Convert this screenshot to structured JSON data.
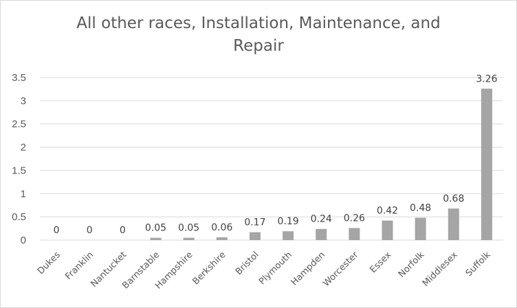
{
  "chart_data": {
    "type": "bar",
    "title_lines": [
      "All other races, Installation, Maintenance, and",
      "Repair"
    ],
    "categories": [
      "Dukes",
      "Franklin",
      "Nantucket",
      "Barnstable",
      "Hampshire",
      "Berkshire",
      "Bristol",
      "Plymouth",
      "Hampden",
      "Worcester",
      "Essex",
      "Norfolk",
      "Middlesex",
      "Suffolk"
    ],
    "values": [
      0,
      0,
      0,
      0.05,
      0.05,
      0.06,
      0.17,
      0.19,
      0.24,
      0.26,
      0.42,
      0.48,
      0.68,
      3.26
    ],
    "value_labels": [
      "0",
      "0",
      "0",
      "0.05",
      "0.05",
      "0.06",
      "0.17",
      "0.19",
      "0.24",
      "0.26",
      "0.42",
      "0.48",
      "0.68",
      "3.26"
    ],
    "y_ticks": [
      "0",
      "0.5",
      "1",
      "1.5",
      "2",
      "2.5",
      "3",
      "3.5"
    ],
    "ylim": [
      0,
      3.5
    ],
    "grid": true,
    "legend": "none",
    "colors": {
      "bar": "#a5a5a5",
      "grid": "#d9d9d9"
    }
  }
}
